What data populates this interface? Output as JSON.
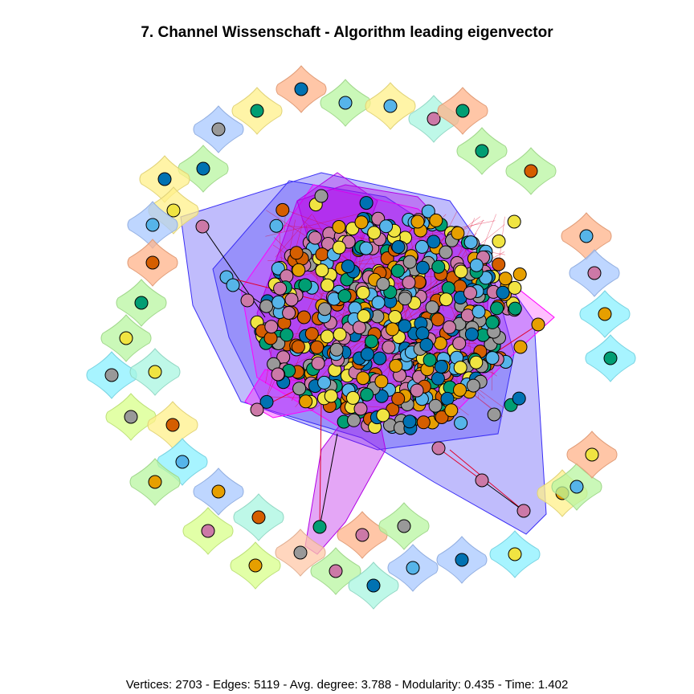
{
  "title": "7. Channel Wissenschaft - Algorithm leading eigenvector",
  "footer": "Vertices: 2703 - Edges: 5119 - Avg. degree: 3.788 - Modularity: 0.435 - Time: 1.402",
  "colors": {
    "community_hull": "#3b2ff5",
    "community_hull_alt": "#b300e6",
    "community_hull_magenta": "#ff00ff",
    "edge_black": "#000000",
    "edge_red": "#e0002a",
    "node_palette": [
      "#e69f00",
      "#56b4e9",
      "#009e73",
      "#f0e442",
      "#0072b2",
      "#d55e00",
      "#cc79a7",
      "#999999"
    ],
    "hull_palette": [
      "#ffb38a",
      "#b8f5a0",
      "#fff08a",
      "#a8f5e0",
      "#a8c8ff",
      "#8af0ff",
      "#d8ff8a",
      "#ffc8a8"
    ]
  },
  "icons": {
    "node": "circle-node-icon",
    "community": "rounded-hull-icon"
  }
}
